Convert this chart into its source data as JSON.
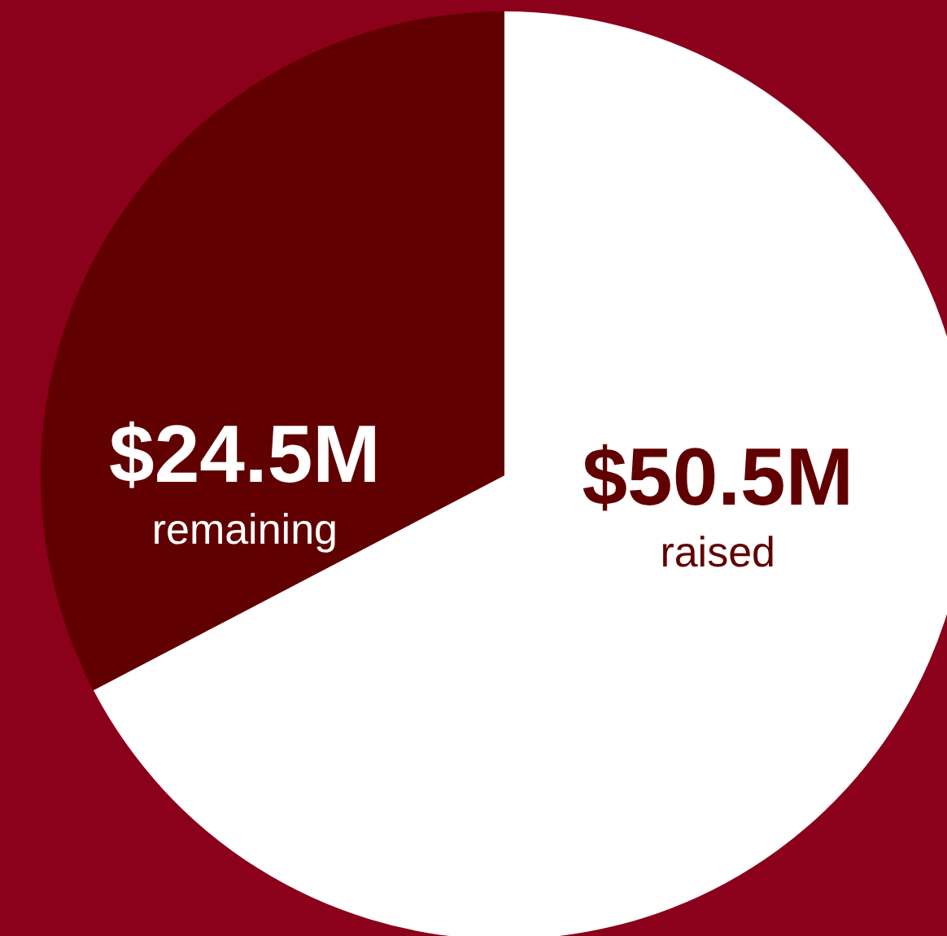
{
  "chart_data": {
    "type": "pie",
    "categories": [
      "raised",
      "remaining"
    ],
    "values": [
      50.5,
      24.5
    ],
    "colors": [
      "#ffffff",
      "#610000"
    ],
    "value_labels": [
      "$50.5M",
      "$24.5M"
    ],
    "legend": false
  }
}
